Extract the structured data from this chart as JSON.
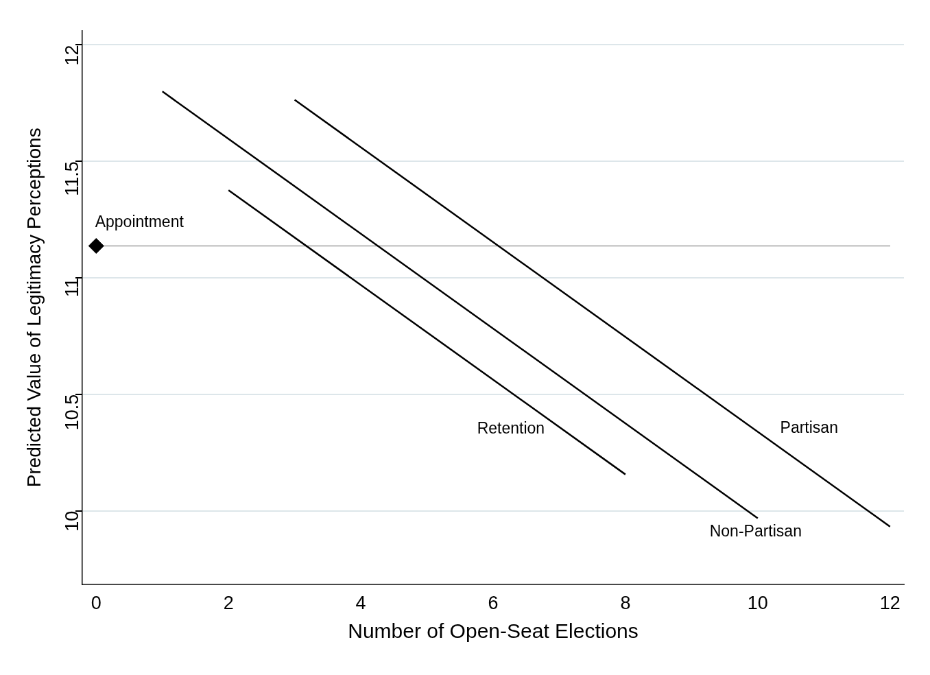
{
  "chart_data": {
    "type": "line",
    "xlabel": "Number of Open-Seat Elections",
    "ylabel": "Predicted Value of Legitimacy Perceptions",
    "xlim": [
      -0.21,
      12.21
    ],
    "xticks": [
      0,
      2,
      4,
      6,
      8,
      10,
      12
    ],
    "ylim": [
      9.685,
      12.06
    ],
    "yticks": [
      10,
      10.5,
      11,
      11.5,
      12
    ],
    "grid": "y",
    "legend": false,
    "line_style": "solid",
    "marker": "none",
    "series": [
      {
        "name": "Retention",
        "color": "#000000",
        "x": [
          2,
          8
        ],
        "values": [
          11.376,
          10.156
        ]
      },
      {
        "name": "Non-Partisan",
        "color": "#000000",
        "x": [
          1,
          10
        ],
        "values": [
          11.8,
          9.968
        ]
      },
      {
        "name": "Partisan",
        "color": "#000000",
        "x": [
          3,
          12
        ],
        "values": [
          11.764,
          9.932
        ]
      },
      {
        "name": "Appointment",
        "type": "scatter",
        "marker": "diamond",
        "color": "#000000",
        "x": [
          0
        ],
        "values": [
          11.137
        ]
      }
    ],
    "ref_lines": [
      {
        "axis": "y",
        "value": 11.137,
        "color": "#a0a0a0"
      }
    ]
  }
}
